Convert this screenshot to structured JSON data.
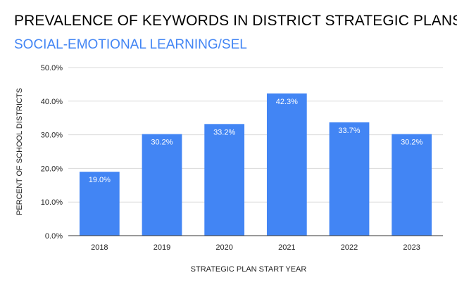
{
  "title": "PREVALENCE OF KEYWORDS IN DISTRICT STRATEGIC PLANS",
  "subtitle": "SOCIAL-EMOTIONAL LEARNING/SEL",
  "chart_data": {
    "type": "bar",
    "title": "PREVALENCE OF KEYWORDS IN DISTRICT STRATEGIC PLANS",
    "subtitle": "SOCIAL-EMOTIONAL LEARNING/SEL",
    "xlabel": "STRATEGIC PLAN START YEAR",
    "ylabel": "PERCENT OF SCHOOL DISTRICTS",
    "categories": [
      "2018",
      "2019",
      "2020",
      "2021",
      "2022",
      "2023"
    ],
    "values": [
      19.0,
      30.2,
      33.2,
      42.3,
      33.7,
      30.2
    ],
    "data_labels": [
      "19.0%",
      "30.2%",
      "33.2%",
      "42.3%",
      "33.7%",
      "30.2%"
    ],
    "ylim": [
      0,
      50
    ],
    "yticks": [
      0,
      10,
      20,
      30,
      40,
      50
    ],
    "ytick_labels": [
      "0.0%",
      "10.0%",
      "20.0%",
      "30.0%",
      "40.0%",
      "50.0%"
    ],
    "grid": true,
    "legend": "none",
    "colors": {
      "bar": "#4285f4",
      "subtitle": "#4285f4",
      "grid": "#d9d9d9",
      "axis": "#333333"
    }
  }
}
